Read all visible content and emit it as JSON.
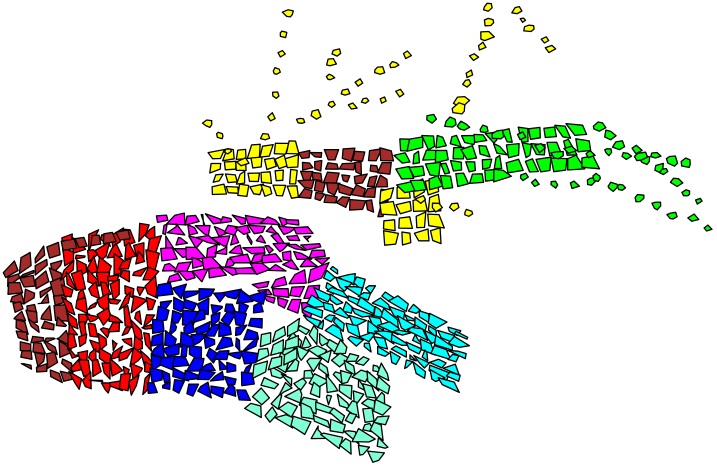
{
  "partition_colors": {
    "red": "#ff0000",
    "brown": "#a52a2a",
    "magenta": "#ff00ff",
    "blue": "#0000ff",
    "cyan": "#00ffff",
    "aquamarine": "#7fffd4",
    "yellow": "#ffff00",
    "green": "#00ff00"
  },
  "outline_color": "#000000",
  "background": "#ffffff"
}
